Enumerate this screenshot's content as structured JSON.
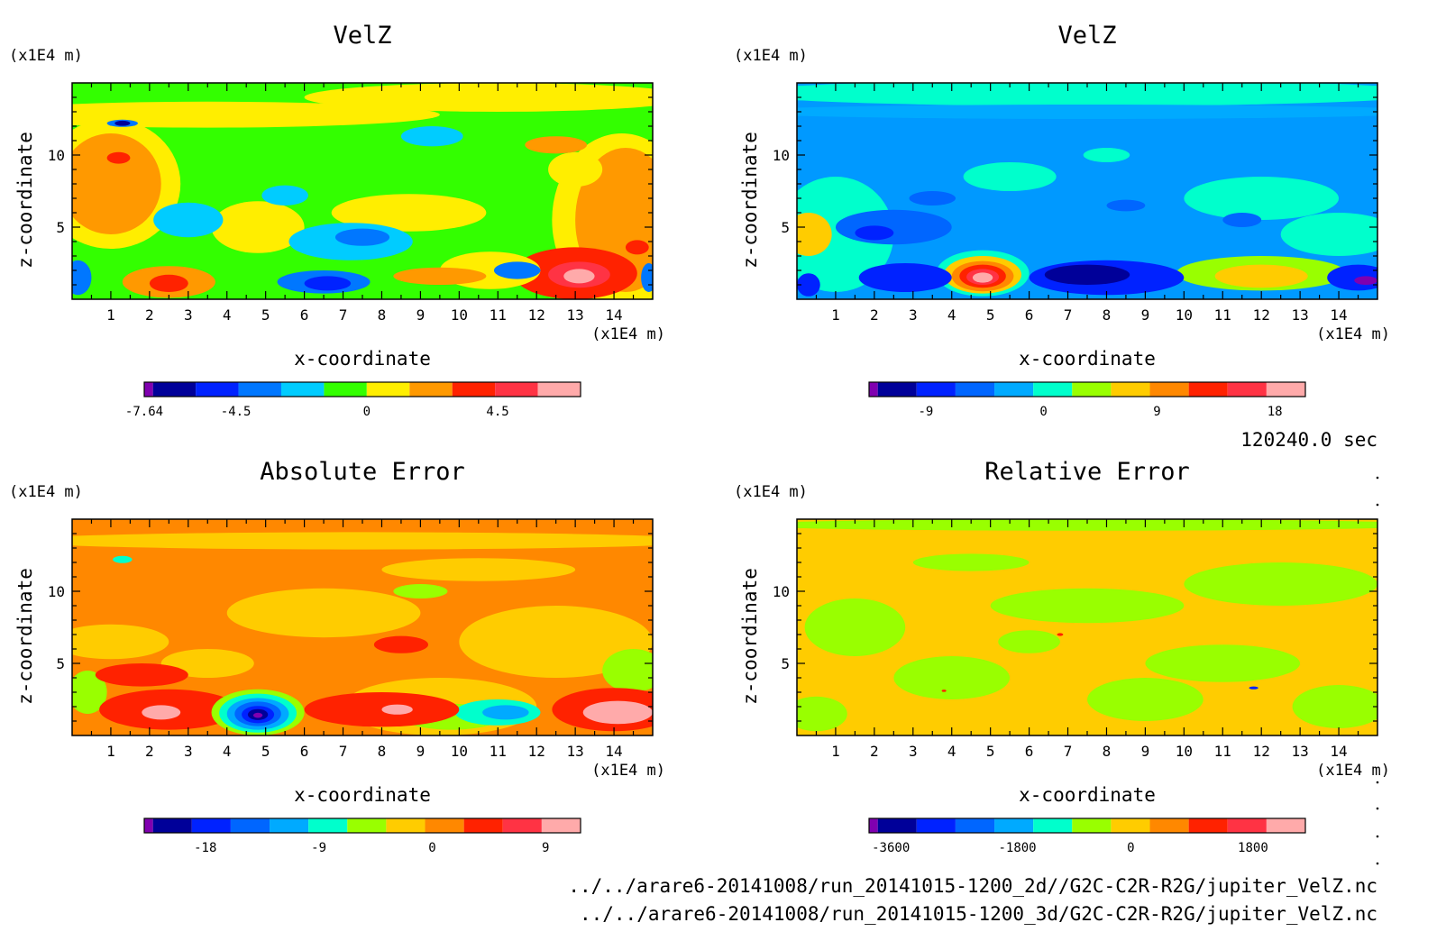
{
  "footer": {
    "time_label": "120240.0 sec",
    "file_lines": [
      "../../arare6-20141008/run_20141015-1200_2d//G2C-C2R-R2G/jupiter_VelZ.nc",
      "../../arare6-20141008/run_20141015-1200_3d/G2C-C2R-R2G/jupiter_VelZ.nc"
    ]
  },
  "chart_data": [
    {
      "type": "heatmap",
      "title": "VelZ",
      "xlabel": "x-coordinate",
      "ylabel": "z-coordinate",
      "x_unit": "(x1E4 m)",
      "y_unit": "(x1E4 m)",
      "xlim": [
        0,
        15
      ],
      "ylim": [
        0,
        15
      ],
      "x_ticks": [
        1,
        2,
        3,
        4,
        5,
        6,
        7,
        8,
        9,
        10,
        11,
        12,
        13,
        14
      ],
      "y_ticks": [
        5,
        10
      ],
      "background_color": "#33ff00",
      "colorbar": {
        "colors": [
          "#8000b0",
          "#000099",
          "#0022ff",
          "#0077ff",
          "#00ccff",
          "#33ff00",
          "#ffee00",
          "#ff9900",
          "#ff2200",
          "#ff3344",
          "#ffaaaa"
        ],
        "labels": [
          {
            "value": -7.64,
            "text": "-7.64"
          },
          {
            "value": -4.5,
            "text": "-4.5"
          },
          {
            "value": 0,
            "text": "0"
          },
          {
            "value": 4.5,
            "text": "4.5"
          }
        ]
      },
      "blobs": [
        {
          "x": 3.5,
          "z": 12.8,
          "rx": 6,
          "rz": 0.9,
          "color": "#ffee00"
        },
        {
          "x": 11,
          "z": 14,
          "rx": 5,
          "rz": 1,
          "color": "#ffee00"
        },
        {
          "x": 1,
          "z": 8,
          "rx": 1.8,
          "rz": 4.5,
          "color": "#ffee00"
        },
        {
          "x": 1,
          "z": 8,
          "rx": 1.3,
          "rz": 3.5,
          "color": "#ff9900"
        },
        {
          "x": 1.2,
          "z": 9.8,
          "rx": 0.3,
          "rz": 0.4,
          "color": "#ff2200"
        },
        {
          "x": 14.2,
          "z": 5.5,
          "rx": 1.8,
          "rz": 6,
          "color": "#ffee00"
        },
        {
          "x": 14.3,
          "z": 5.5,
          "rx": 1.3,
          "rz": 5,
          "color": "#ff9900"
        },
        {
          "x": 13,
          "z": 1.8,
          "rx": 1.6,
          "rz": 1.8,
          "color": "#ff2200"
        },
        {
          "x": 13.1,
          "z": 1.7,
          "rx": 0.8,
          "rz": 0.9,
          "color": "#ff3344"
        },
        {
          "x": 13.1,
          "z": 1.6,
          "rx": 0.4,
          "rz": 0.5,
          "color": "#ffaaaa"
        },
        {
          "x": 14.6,
          "z": 3.6,
          "rx": 0.3,
          "rz": 0.5,
          "color": "#ff2200"
        },
        {
          "x": 2.5,
          "z": 1.2,
          "rx": 1.2,
          "rz": 1.1,
          "color": "#ff9900"
        },
        {
          "x": 2.5,
          "z": 1.1,
          "rx": 0.5,
          "rz": 0.6,
          "color": "#ff2200"
        },
        {
          "x": 4.8,
          "z": 5,
          "rx": 1.2,
          "rz": 1.8,
          "color": "#ffee00"
        },
        {
          "x": 8.7,
          "z": 6,
          "rx": 2,
          "rz": 1.3,
          "color": "#ffee00"
        },
        {
          "x": 10.8,
          "z": 2,
          "rx": 1.3,
          "rz": 1.3,
          "color": "#ffee00"
        },
        {
          "x": 13,
          "z": 9,
          "rx": 0.7,
          "rz": 1.2,
          "color": "#ffee00"
        },
        {
          "x": 12.5,
          "z": 10.7,
          "rx": 0.8,
          "rz": 0.6,
          "color": "#ff9900"
        },
        {
          "x": 9.5,
          "z": 1.6,
          "rx": 1.2,
          "rz": 0.6,
          "color": "#ff9900"
        },
        {
          "x": 3,
          "z": 5.5,
          "rx": 0.9,
          "rz": 1.2,
          "color": "#00ccff"
        },
        {
          "x": 5.5,
          "z": 7.2,
          "rx": 0.6,
          "rz": 0.7,
          "color": "#00ccff"
        },
        {
          "x": 9.3,
          "z": 11.3,
          "rx": 0.8,
          "rz": 0.7,
          "color": "#00ccff"
        },
        {
          "x": 7.2,
          "z": 4,
          "rx": 1.6,
          "rz": 1.3,
          "color": "#00ccff"
        },
        {
          "x": 7.5,
          "z": 4.3,
          "rx": 0.7,
          "rz": 0.6,
          "color": "#0077ff"
        },
        {
          "x": 6.5,
          "z": 1.2,
          "rx": 1.2,
          "rz": 0.8,
          "color": "#0077ff"
        },
        {
          "x": 6.6,
          "z": 1.1,
          "rx": 0.6,
          "rz": 0.5,
          "color": "#0022ff"
        },
        {
          "x": 11.5,
          "z": 2,
          "rx": 0.6,
          "rz": 0.6,
          "color": "#0077ff"
        },
        {
          "x": 0.15,
          "z": 1.5,
          "rx": 0.35,
          "rz": 1.2,
          "color": "#0077ff"
        },
        {
          "x": 14.9,
          "z": 1.5,
          "rx": 0.2,
          "rz": 1,
          "color": "#0077ff"
        },
        {
          "x": 1.3,
          "z": 12.2,
          "rx": 0.4,
          "rz": 0.25,
          "color": "#0077ff"
        },
        {
          "x": 1.3,
          "z": 12.2,
          "rx": 0.2,
          "rz": 0.18,
          "color": "#000099"
        }
      ]
    },
    {
      "type": "heatmap",
      "title": "VelZ",
      "xlabel": "x-coordinate",
      "ylabel": "z-coordinate",
      "x_unit": "(x1E4 m)",
      "y_unit": "(x1E4 m)",
      "xlim": [
        0,
        15
      ],
      "ylim": [
        0,
        15
      ],
      "x_ticks": [
        1,
        2,
        3,
        4,
        5,
        6,
        7,
        8,
        9,
        10,
        11,
        12,
        13,
        14
      ],
      "y_ticks": [
        5,
        10
      ],
      "background_color": "#0099ff",
      "colorbar": {
        "colors": [
          "#8000b0",
          "#000099",
          "#0022ff",
          "#0066ff",
          "#00aaff",
          "#00ffcc",
          "#99ff00",
          "#ffcc00",
          "#ff8800",
          "#ff2200",
          "#ff3344",
          "#ffaaaa"
        ],
        "labels": [
          {
            "value": -9,
            "text": "-9"
          },
          {
            "value": 0,
            "text": "0"
          },
          {
            "value": 9,
            "text": "9"
          },
          {
            "value": 18,
            "text": "18"
          }
        ]
      },
      "blobs": [
        {
          "x": 7.5,
          "z": 14.3,
          "rx": 9,
          "rz": 0.9,
          "color": "#00ffcc"
        },
        {
          "x": 7.5,
          "z": 13,
          "rx": 9,
          "rz": 0.5,
          "color": "#00aaff"
        },
        {
          "x": 1,
          "z": 4.5,
          "rx": 1.5,
          "rz": 4,
          "color": "#00ffcc"
        },
        {
          "x": 0.3,
          "z": 4.5,
          "rx": 0.6,
          "rz": 1.5,
          "color": "#ffcc00"
        },
        {
          "x": 5.5,
          "z": 8.5,
          "rx": 1.2,
          "rz": 1,
          "color": "#00ffcc"
        },
        {
          "x": 12,
          "z": 7,
          "rx": 2,
          "rz": 1.5,
          "color": "#00ffcc"
        },
        {
          "x": 14,
          "z": 4.5,
          "rx": 1.5,
          "rz": 1.5,
          "color": "#00ffcc"
        },
        {
          "x": 12,
          "z": 1.8,
          "rx": 2.2,
          "rz": 1.2,
          "color": "#99ff00"
        },
        {
          "x": 12,
          "z": 1.6,
          "rx": 1.2,
          "rz": 0.8,
          "color": "#ffcc00"
        },
        {
          "x": 4.8,
          "z": 1.8,
          "rx": 1.2,
          "rz": 1.6,
          "color": "#00ffcc"
        },
        {
          "x": 4.8,
          "z": 1.7,
          "rx": 1.0,
          "rz": 1.3,
          "color": "#ffcc00"
        },
        {
          "x": 4.8,
          "z": 1.6,
          "rx": 0.8,
          "rz": 1.05,
          "color": "#ff8800"
        },
        {
          "x": 4.8,
          "z": 1.6,
          "rx": 0.6,
          "rz": 0.8,
          "color": "#ff2200"
        },
        {
          "x": 4.8,
          "z": 1.55,
          "rx": 0.42,
          "rz": 0.55,
          "color": "#ff3344"
        },
        {
          "x": 4.8,
          "z": 1.5,
          "rx": 0.26,
          "rz": 0.35,
          "color": "#ffaaaa"
        },
        {
          "x": 2.5,
          "z": 5,
          "rx": 1.5,
          "rz": 1.2,
          "color": "#0066ff"
        },
        {
          "x": 2,
          "z": 4.6,
          "rx": 0.5,
          "rz": 0.5,
          "color": "#0022ff"
        },
        {
          "x": 2.8,
          "z": 1.5,
          "rx": 1.2,
          "rz": 1,
          "color": "#0022ff"
        },
        {
          "x": 8,
          "z": 1.5,
          "rx": 2,
          "rz": 1.2,
          "color": "#0022ff"
        },
        {
          "x": 7.5,
          "z": 1.7,
          "rx": 1.1,
          "rz": 0.7,
          "color": "#000099"
        },
        {
          "x": 14.5,
          "z": 1.5,
          "rx": 0.8,
          "rz": 0.9,
          "color": "#0022ff"
        },
        {
          "x": 14.7,
          "z": 1.3,
          "rx": 0.3,
          "rz": 0.3,
          "color": "#8000b0"
        },
        {
          "x": 0.3,
          "z": 1,
          "rx": 0.3,
          "rz": 0.8,
          "color": "#0022ff"
        },
        {
          "x": 8.5,
          "z": 6.5,
          "rx": 0.5,
          "rz": 0.4,
          "color": "#0066ff"
        },
        {
          "x": 11.5,
          "z": 5.5,
          "rx": 0.5,
          "rz": 0.5,
          "color": "#0066ff"
        },
        {
          "x": 3.5,
          "z": 7,
          "rx": 0.6,
          "rz": 0.5,
          "color": "#0066ff"
        },
        {
          "x": 8,
          "z": 10,
          "rx": 0.6,
          "rz": 0.5,
          "color": "#00ffcc"
        }
      ]
    },
    {
      "type": "heatmap",
      "title": "Absolute Error",
      "xlabel": "x-coordinate",
      "ylabel": "z-coordinate",
      "x_unit": "(x1E4 m)",
      "y_unit": "(x1E4 m)",
      "xlim": [
        0,
        15
      ],
      "ylim": [
        0,
        15
      ],
      "x_ticks": [
        1,
        2,
        3,
        4,
        5,
        6,
        7,
        8,
        9,
        10,
        11,
        12,
        13,
        14
      ],
      "y_ticks": [
        5,
        10
      ],
      "background_color": "#ff8800",
      "colorbar": {
        "colors": [
          "#8000b0",
          "#000099",
          "#0022ff",
          "#0066ff",
          "#00aaff",
          "#00ffcc",
          "#99ff00",
          "#ffcc00",
          "#ff8800",
          "#ff2200",
          "#ff3344",
          "#ffaaaa"
        ],
        "labels": [
          {
            "value": -18,
            "text": "-18"
          },
          {
            "value": -9,
            "text": "-9"
          },
          {
            "value": 0,
            "text": "0"
          },
          {
            "value": 9,
            "text": "9"
          }
        ]
      },
      "blobs": [
        {
          "x": 7.5,
          "z": 13.5,
          "rx": 9,
          "rz": 0.6,
          "color": "#ffcc00"
        },
        {
          "x": 10.5,
          "z": 11.5,
          "rx": 2.5,
          "rz": 0.8,
          "color": "#ffcc00"
        },
        {
          "x": 6.5,
          "z": 8.5,
          "rx": 2.5,
          "rz": 1.7,
          "color": "#ffcc00"
        },
        {
          "x": 12.5,
          "z": 6.5,
          "rx": 2.5,
          "rz": 2.5,
          "color": "#ffcc00"
        },
        {
          "x": 1,
          "z": 6.5,
          "rx": 1.5,
          "rz": 1.2,
          "color": "#ffcc00"
        },
        {
          "x": 9.5,
          "z": 2,
          "rx": 2.5,
          "rz": 2,
          "color": "#ffcc00"
        },
        {
          "x": 14.5,
          "z": 4.5,
          "rx": 0.8,
          "rz": 1.5,
          "color": "#99ff00"
        },
        {
          "x": 0.4,
          "z": 3,
          "rx": 0.5,
          "rz": 1.5,
          "color": "#99ff00"
        },
        {
          "x": 9.8,
          "z": 1.3,
          "rx": 1.3,
          "rz": 0.9,
          "color": "#99ff00"
        },
        {
          "x": 11,
          "z": 1.6,
          "rx": 1.1,
          "rz": 0.9,
          "color": "#00ffcc"
        },
        {
          "x": 11.2,
          "z": 1.6,
          "rx": 0.6,
          "rz": 0.5,
          "color": "#00aaff"
        },
        {
          "x": 9,
          "z": 10,
          "rx": 0.7,
          "rz": 0.5,
          "color": "#99ff00"
        },
        {
          "x": 1.3,
          "z": 12.2,
          "rx": 0.25,
          "rz": 0.25,
          "color": "#00ffcc"
        },
        {
          "x": 3.5,
          "z": 5,
          "rx": 1.2,
          "rz": 1,
          "color": "#ffcc00"
        },
        {
          "x": 2.5,
          "z": 1.8,
          "rx": 1.8,
          "rz": 1.4,
          "color": "#ff2200"
        },
        {
          "x": 2.3,
          "z": 1.6,
          "rx": 0.5,
          "rz": 0.5,
          "color": "#ffaaaa"
        },
        {
          "x": 1.8,
          "z": 4.2,
          "rx": 1.2,
          "rz": 0.8,
          "color": "#ff2200"
        },
        {
          "x": 8.5,
          "z": 6.3,
          "rx": 0.7,
          "rz": 0.6,
          "color": "#ff2200"
        },
        {
          "x": 8,
          "z": 1.8,
          "rx": 2,
          "rz": 1.2,
          "color": "#ff2200"
        },
        {
          "x": 8.4,
          "z": 1.8,
          "rx": 0.4,
          "rz": 0.35,
          "color": "#ffaaaa"
        },
        {
          "x": 14,
          "z": 1.8,
          "rx": 1.6,
          "rz": 1.5,
          "color": "#ff2200"
        },
        {
          "x": 14.1,
          "z": 1.6,
          "rx": 0.9,
          "rz": 0.8,
          "color": "#ffaaaa"
        },
        {
          "x": 4.8,
          "z": 1.6,
          "rx": 1.2,
          "rz": 1.6,
          "color": "#99ff00"
        },
        {
          "x": 4.8,
          "z": 1.55,
          "rx": 1.0,
          "rz": 1.35,
          "color": "#00ffcc"
        },
        {
          "x": 4.8,
          "z": 1.5,
          "rx": 0.8,
          "rz": 1.1,
          "color": "#00aaff"
        },
        {
          "x": 4.8,
          "z": 1.5,
          "rx": 0.6,
          "rz": 0.85,
          "color": "#0066ff"
        },
        {
          "x": 4.8,
          "z": 1.45,
          "rx": 0.42,
          "rz": 0.6,
          "color": "#0022ff"
        },
        {
          "x": 4.8,
          "z": 1.45,
          "rx": 0.26,
          "rz": 0.38,
          "color": "#000099"
        },
        {
          "x": 4.8,
          "z": 1.4,
          "rx": 0.12,
          "rz": 0.18,
          "color": "#8000b0"
        }
      ]
    },
    {
      "type": "heatmap",
      "title": "Relative Error",
      "xlabel": "x-coordinate",
      "ylabel": "z-coordinate",
      "x_unit": "(x1E4 m)",
      "y_unit": "(x1E4 m)",
      "xlim": [
        0,
        15
      ],
      "ylim": [
        0,
        15
      ],
      "x_ticks": [
        1,
        2,
        3,
        4,
        5,
        6,
        7,
        8,
        9,
        10,
        11,
        12,
        13,
        14
      ],
      "y_ticks": [
        5,
        10
      ],
      "background_color": "#ffcc00",
      "colorbar": {
        "colors": [
          "#8000b0",
          "#000099",
          "#0022ff",
          "#0066ff",
          "#00aaff",
          "#00ffcc",
          "#99ff00",
          "#ffcc00",
          "#ff8800",
          "#ff2200",
          "#ff3344",
          "#ffaaaa"
        ],
        "labels": [
          {
            "value": -3600,
            "text": "-3600"
          },
          {
            "value": -1800,
            "text": "-1800"
          },
          {
            "value": 0,
            "text": "0"
          },
          {
            "value": 1800,
            "text": "1800"
          }
        ]
      },
      "blobs": [
        {
          "x": 7.5,
          "z": 14.6,
          "rx": 9,
          "rz": 0.4,
          "color": "#99ff00"
        },
        {
          "x": 1.5,
          "z": 7.5,
          "rx": 1.3,
          "rz": 2,
          "color": "#99ff00"
        },
        {
          "x": 4.5,
          "z": 12,
          "rx": 1.5,
          "rz": 0.6,
          "color": "#99ff00"
        },
        {
          "x": 7.5,
          "z": 9,
          "rx": 2.5,
          "rz": 1.2,
          "color": "#99ff00"
        },
        {
          "x": 12.5,
          "z": 10.5,
          "rx": 2.5,
          "rz": 1.5,
          "color": "#99ff00"
        },
        {
          "x": 11,
          "z": 5,
          "rx": 2,
          "rz": 1.3,
          "color": "#99ff00"
        },
        {
          "x": 4,
          "z": 4,
          "rx": 1.5,
          "rz": 1.5,
          "color": "#99ff00"
        },
        {
          "x": 9,
          "z": 2.5,
          "rx": 1.5,
          "rz": 1.5,
          "color": "#99ff00"
        },
        {
          "x": 14,
          "z": 2,
          "rx": 1.2,
          "rz": 1.5,
          "color": "#99ff00"
        },
        {
          "x": 0.5,
          "z": 1.5,
          "rx": 0.8,
          "rz": 1.2,
          "color": "#99ff00"
        },
        {
          "x": 6,
          "z": 6.5,
          "rx": 0.8,
          "rz": 0.8,
          "color": "#99ff00"
        },
        {
          "x": 6.8,
          "z": 7,
          "rx": 0.08,
          "rz": 0.1,
          "color": "#ff2200"
        },
        {
          "x": 11.8,
          "z": 3.3,
          "rx": 0.12,
          "rz": 0.1,
          "color": "#0022ff"
        },
        {
          "x": 3.8,
          "z": 3.1,
          "rx": 0.06,
          "rz": 0.08,
          "color": "#ff2200"
        }
      ]
    }
  ]
}
